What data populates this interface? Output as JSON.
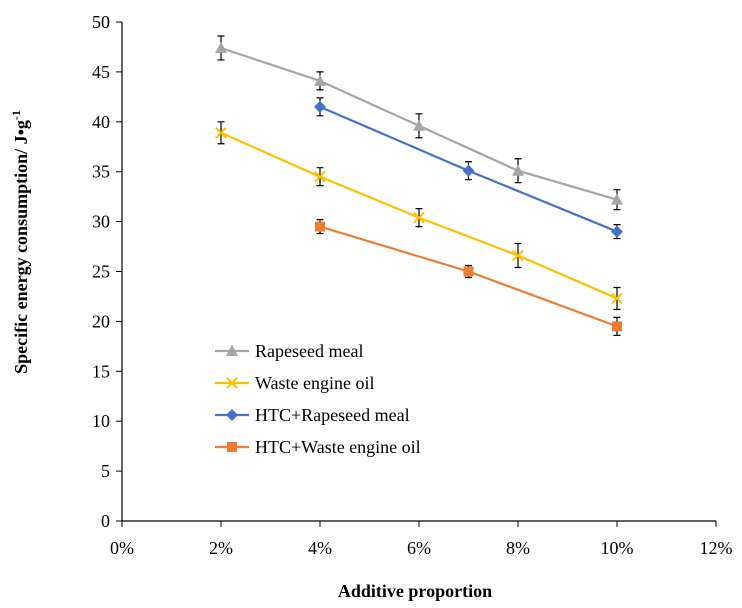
{
  "chart_data": {
    "type": "line",
    "xlabel": "Additive proportion",
    "ylabel": "Specific energy consumption/ J•g",
    "ylabel_superscript": "-1",
    "xlim": [
      0,
      12
    ],
    "ylim": [
      0,
      50
    ],
    "x_ticks": [
      0,
      2,
      4,
      6,
      8,
      10,
      12
    ],
    "x_tick_labels": [
      "0%",
      "2%",
      "4%",
      "6%",
      "8%",
      "10%",
      "12%"
    ],
    "y_ticks": [
      0,
      5,
      10,
      15,
      20,
      25,
      30,
      35,
      40,
      45,
      50
    ],
    "y_tick_labels": [
      "0",
      "5",
      "10",
      "15",
      "20",
      "25",
      "30",
      "35",
      "40",
      "45",
      "50"
    ],
    "grid": false,
    "legend_position": "lower-left inside",
    "error_bars": true,
    "series": [
      {
        "name": "Rapeseed meal",
        "color": "#a5a5a5",
        "marker": "triangle",
        "x": [
          2,
          4,
          6,
          8,
          10
        ],
        "y": [
          47.4,
          44.1,
          39.6,
          35.1,
          32.2
        ],
        "err": [
          1.2,
          0.9,
          1.2,
          1.2,
          1.0
        ]
      },
      {
        "name": "Waste engine oil",
        "color": "#ffc000",
        "marker": "x",
        "x": [
          2,
          4,
          6,
          8,
          10
        ],
        "y": [
          38.9,
          34.5,
          30.4,
          26.6,
          22.3
        ],
        "err": [
          1.1,
          0.9,
          0.9,
          1.2,
          1.1
        ]
      },
      {
        "name": "HTC+Rapeseed meal",
        "color": "#4472c4",
        "marker": "diamond",
        "x": [
          4,
          7,
          10
        ],
        "y": [
          41.5,
          35.1,
          29.0
        ],
        "err": [
          0.9,
          0.9,
          0.7
        ]
      },
      {
        "name": "HTC+Waste engine oil",
        "color": "#ed7d31",
        "marker": "square",
        "x": [
          4,
          7,
          10
        ],
        "y": [
          29.5,
          25.0,
          19.5
        ],
        "err": [
          0.7,
          0.6,
          0.9
        ]
      }
    ]
  }
}
